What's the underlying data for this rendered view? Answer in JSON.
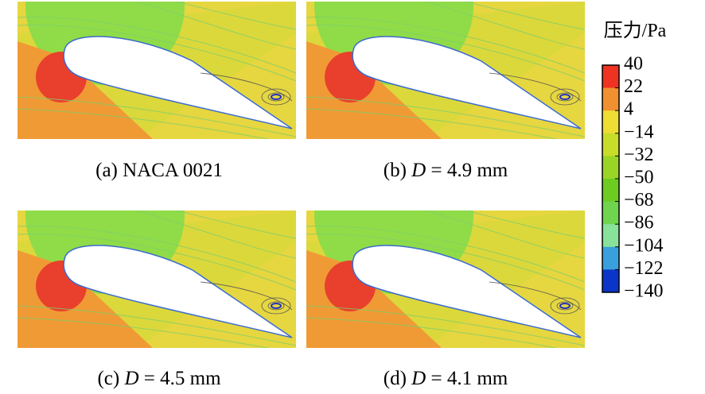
{
  "panels": [
    {
      "caption": {
        "prefix": "(a) NACA 0021"
      }
    },
    {
      "caption": {
        "prefix": "(b)",
        "italic": "D",
        "suffix": "= 4.9 mm"
      }
    },
    {
      "caption": {
        "prefix": "(c)",
        "italic": "D",
        "suffix": "= 4.5 mm"
      }
    },
    {
      "caption": {
        "prefix": "(d)",
        "italic": "D",
        "suffix": "= 4.1 mm"
      }
    }
  ],
  "colorbar": {
    "title": "压力/Pa",
    "ticks": [
      "40",
      "22",
      "4",
      "−14",
      "−32",
      "−50",
      "−68",
      "−86",
      "−104",
      "−122",
      "−140"
    ]
  }
}
